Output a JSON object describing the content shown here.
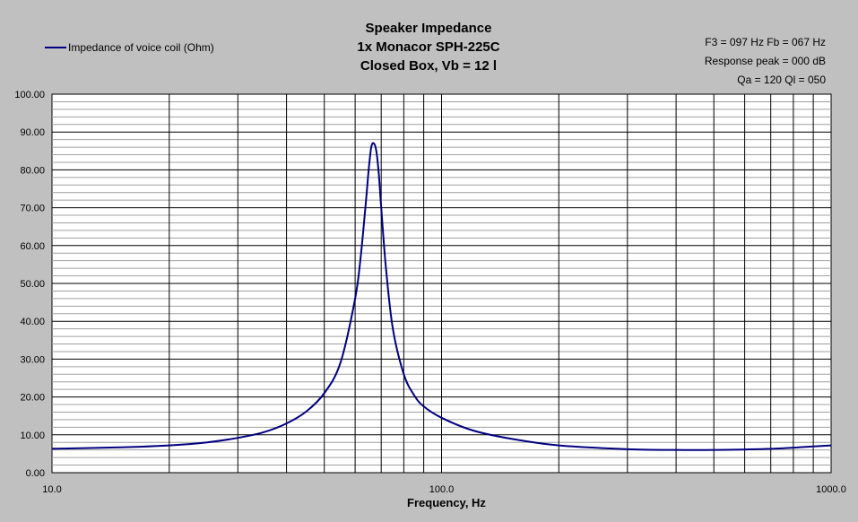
{
  "chart_data": {
    "type": "line",
    "title": [
      "Speaker Impedance",
      "1x Monacor SPH-225C",
      "Closed Box, Vb = 12 l"
    ],
    "info": [
      "F3 = 097 Hz  Fb = 067 Hz",
      "Response peak = 000 dB",
      "Qa = 120  Ql = 050"
    ],
    "xlabel": "Frequency, Hz",
    "ylabel": "",
    "x_scale": "log",
    "xlim": [
      10,
      1000
    ],
    "ylim": [
      0,
      100
    ],
    "x_tick_labels": [
      "10.0",
      "100.0",
      "1000.0"
    ],
    "x_tick_values": [
      10,
      100,
      1000
    ],
    "y_tick_labels": [
      "0.00",
      "10.00",
      "20.00",
      "30.00",
      "40.00",
      "50.00",
      "60.00",
      "70.00",
      "80.00",
      "90.00",
      "100.00"
    ],
    "y_tick_values": [
      0,
      10,
      20,
      30,
      40,
      50,
      60,
      70,
      80,
      90,
      100
    ],
    "grid": true,
    "legend_position": "top-left",
    "colors": {
      "background": "#c0c0c0",
      "plot_area": "#ffffff",
      "line": "#000080",
      "grid": "#000000"
    },
    "series": [
      {
        "name": "Impedance of voice coil (Ohm)",
        "x": [
          10,
          15,
          20,
          25,
          30,
          35,
          40,
          45,
          50,
          55,
          60,
          62,
          64,
          65,
          66,
          67,
          68,
          69,
          70,
          72,
          75,
          80,
          85,
          90,
          100,
          120,
          150,
          200,
          300,
          400,
          500,
          700,
          1000
        ],
        "y": [
          6.3,
          6.7,
          7.2,
          8.0,
          9.2,
          10.7,
          13.0,
          16.2,
          21.0,
          29.0,
          46.0,
          57.0,
          72.0,
          80.0,
          86.0,
          87.0,
          85.0,
          79.0,
          70.0,
          54.0,
          38.0,
          26.0,
          20.5,
          17.5,
          14.5,
          11.2,
          9.0,
          7.2,
          6.2,
          6.0,
          6.0,
          6.3,
          7.2
        ]
      }
    ]
  }
}
